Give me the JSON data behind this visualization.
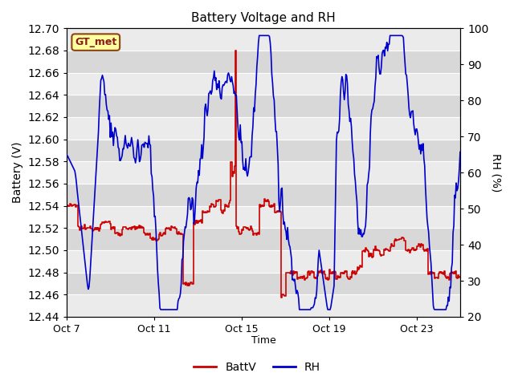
{
  "title": "Battery Voltage and RH",
  "xlabel": "Time",
  "ylabel_left": "Battery (V)",
  "ylabel_right": "RH (%)",
  "station_label": "GT_met",
  "legend_entries": [
    "BattV",
    "RH"
  ],
  "legend_colors": [
    "#cc0000",
    "#0000cc"
  ],
  "x_tick_labels": [
    "Oct 7",
    "Oct 11",
    "Oct 15",
    "Oct 19",
    "Oct 23"
  ],
  "x_tick_pos": [
    0,
    4,
    8,
    12,
    16
  ],
  "xlim": [
    0,
    18
  ],
  "ylim_left": [
    12.44,
    12.7
  ],
  "ylim_right": [
    20,
    100
  ],
  "yticks_left": [
    12.44,
    12.46,
    12.48,
    12.5,
    12.52,
    12.54,
    12.56,
    12.58,
    12.6,
    12.62,
    12.64,
    12.66,
    12.68,
    12.7
  ],
  "yticks_right": [
    20,
    30,
    40,
    50,
    60,
    70,
    80,
    90,
    100
  ],
  "plot_bg_color": "#dedede",
  "grid_color": "#ffffff",
  "batt_color": "#cc0000",
  "rh_color": "#0000cc",
  "fig_width": 6.4,
  "fig_height": 4.8,
  "dpi": 100
}
